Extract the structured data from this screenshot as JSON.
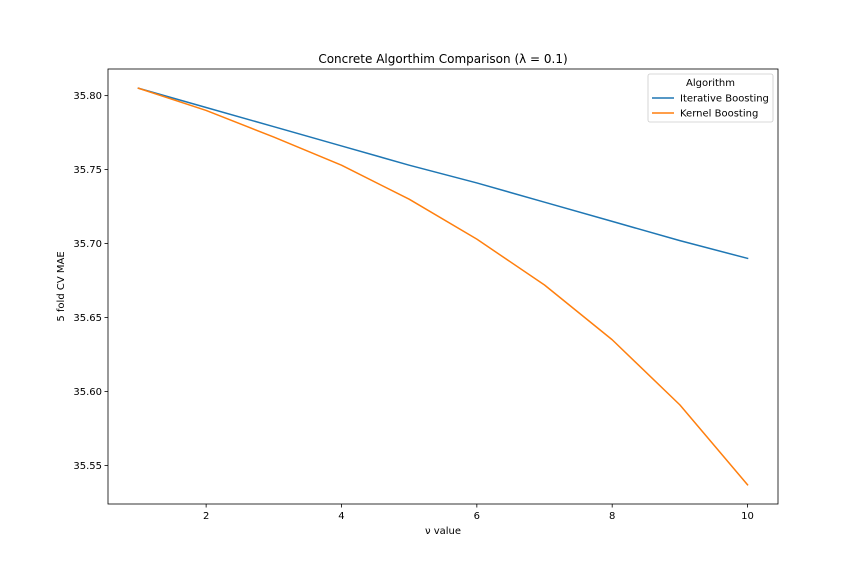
{
  "chart_data": {
    "type": "line",
    "title": "Concrete Algorthim Comparison (λ = 0.1)",
    "xlabel": "ν value",
    "ylabel": "5 fold CV MAE",
    "x": [
      1,
      2,
      3,
      4,
      5,
      6,
      7,
      8,
      9,
      10
    ],
    "xlim": [
      0.55,
      10.45
    ],
    "ylim": [
      35.524,
      35.818
    ],
    "xticks": [
      2,
      4,
      6,
      8,
      10
    ],
    "yticks": [
      35.55,
      35.6,
      35.65,
      35.7,
      35.75,
      35.8
    ],
    "ytick_labels": [
      "35.55",
      "35.60",
      "35.65",
      "35.70",
      "35.75",
      "35.80"
    ],
    "grid": false,
    "legend": {
      "title": "Algorithm",
      "placement": "top-right"
    },
    "series": [
      {
        "name": "Iterative Boosting",
        "color": "#1f77b4",
        "values": [
          35.805,
          35.792,
          35.779,
          35.766,
          35.753,
          35.741,
          35.728,
          35.715,
          35.702,
          35.69
        ]
      },
      {
        "name": "Kernel Boosting",
        "color": "#ff7f0e",
        "values": [
          35.805,
          35.79,
          35.772,
          35.753,
          35.73,
          35.703,
          35.672,
          35.635,
          35.591,
          35.537
        ]
      }
    ]
  }
}
